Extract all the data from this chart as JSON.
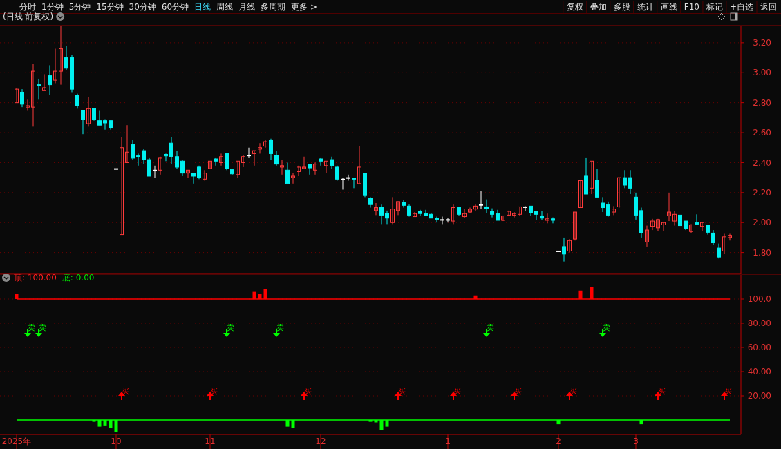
{
  "chart_data": [
    {
      "type": "candlestick",
      "title": "(日线 前复权)",
      "annotations": [
        "分时",
        "1分钟",
        "5分钟",
        "15分钟",
        "30分钟",
        "60分钟",
        "日线",
        "周线",
        "月线",
        "多周期",
        "更多 >",
        "复权",
        "叠加",
        "多股",
        "统计",
        "画线",
        "F10",
        "标记",
        "+自选",
        "返回"
      ],
      "categories": [
        null,
        null,
        null,
        null,
        null,
        null,
        null,
        null,
        null,
        null,
        null,
        null,
        null,
        null,
        null,
        null,
        null,
        null,
        null,
        null,
        null,
        null,
        null,
        null,
        null,
        null,
        null,
        null,
        null,
        null,
        null,
        null,
        null,
        null,
        null,
        null,
        null,
        null,
        null,
        null,
        null,
        null,
        null,
        null,
        null,
        null,
        null,
        null,
        null,
        null,
        null,
        null,
        null,
        null,
        null,
        null,
        null,
        null,
        null,
        null,
        null,
        null,
        null,
        null,
        null,
        null,
        null,
        null,
        null,
        null,
        null,
        null,
        null,
        null,
        null,
        null,
        null,
        null,
        null,
        null,
        null,
        null,
        null,
        null,
        null,
        null,
        null,
        null,
        null,
        null,
        null,
        null,
        null,
        null,
        null,
        null,
        null,
        null,
        null,
        null,
        null,
        null,
        null,
        null,
        null,
        null,
        null,
        null,
        null,
        null,
        null,
        null,
        null,
        null,
        null,
        null,
        null,
        null,
        null,
        null,
        null,
        null,
        null,
        null,
        null,
        null,
        null,
        null,
        null,
        null
      ],
      "ohlc": [
        [
          2.8,
          2.9,
          2.8,
          2.89
        ],
        [
          2.87,
          2.89,
          2.77,
          2.79
        ],
        [
          2.77,
          2.82,
          2.75,
          2.78
        ],
        [
          2.77,
          3.06,
          2.64,
          3.01
        ],
        [
          2.92,
          2.96,
          2.82,
          2.915
        ],
        [
          2.88,
          2.99,
          2.88,
          2.9
        ],
        [
          2.98,
          3.05,
          2.85,
          2.92
        ],
        [
          2.95,
          3.16,
          2.93,
          3.01
        ],
        [
          3.01,
          3.31,
          2.92,
          3.16
        ],
        [
          3.1,
          3.18,
          3.02,
          3.03
        ],
        [
          3.1,
          3.12,
          2.87,
          2.89
        ],
        [
          2.85,
          2.86,
          2.76,
          2.78
        ],
        [
          2.75,
          2.75,
          2.59,
          2.69
        ],
        [
          2.66,
          2.84,
          2.64,
          2.76
        ],
        [
          2.76,
          2.76,
          2.68,
          2.69
        ],
        [
          2.68,
          2.75,
          2.65,
          2.65
        ],
        [
          2.68,
          2.69,
          2.62,
          2.665
        ],
        [
          2.68,
          2.68,
          2.62,
          2.63
        ],
        [
          2.36,
          2.36,
          2.36,
          2.36
        ],
        [
          1.92,
          2.57,
          1.92,
          2.5
        ],
        [
          2.4,
          2.65,
          2.4,
          2.47
        ],
        [
          2.52,
          2.55,
          2.42,
          2.43
        ],
        [
          2.445,
          2.46,
          2.38,
          2.44
        ],
        [
          2.48,
          2.49,
          2.39,
          2.42
        ],
        [
          2.42,
          2.43,
          2.31,
          2.31
        ],
        [
          2.35,
          2.38,
          2.3,
          2.35
        ],
        [
          2.35,
          2.44,
          2.32,
          2.43
        ],
        [
          2.455,
          2.46,
          2.41,
          2.445
        ],
        [
          2.53,
          2.57,
          2.39,
          2.44
        ],
        [
          2.44,
          2.48,
          2.36,
          2.37
        ],
        [
          2.41,
          2.42,
          2.31,
          2.33
        ],
        [
          2.33,
          2.35,
          2.3,
          2.35
        ],
        [
          2.33,
          2.33,
          2.26,
          2.31
        ],
        [
          2.37,
          2.38,
          2.29,
          2.3
        ],
        [
          2.29,
          2.35,
          2.28,
          2.33
        ],
        [
          2.36,
          2.41,
          2.36,
          2.41
        ],
        [
          2.425,
          2.43,
          2.38,
          2.41
        ],
        [
          2.4,
          2.46,
          2.38,
          2.44
        ],
        [
          2.46,
          2.46,
          2.35,
          2.36
        ],
        [
          2.355,
          2.36,
          2.32,
          2.325
        ],
        [
          2.32,
          2.41,
          2.3,
          2.41
        ],
        [
          2.4,
          2.45,
          2.37,
          2.44
        ],
        [
          2.45,
          2.5,
          2.43,
          2.45
        ],
        [
          2.46,
          2.48,
          2.38,
          2.48
        ],
        [
          2.49,
          2.53,
          2.46,
          2.5
        ],
        [
          2.51,
          2.55,
          2.5,
          2.54
        ],
        [
          2.55,
          2.56,
          2.42,
          2.46
        ],
        [
          2.45,
          2.48,
          2.38,
          2.39
        ],
        [
          2.37,
          2.42,
          2.32,
          2.38
        ],
        [
          2.35,
          2.4,
          2.26,
          2.26
        ],
        [
          2.3,
          2.33,
          2.26,
          2.31
        ],
        [
          2.34,
          2.38,
          2.31,
          2.37
        ],
        [
          2.36,
          2.44,
          2.36,
          2.37
        ],
        [
          2.39,
          2.39,
          2.32,
          2.365
        ],
        [
          2.35,
          2.4,
          2.32,
          2.39
        ],
        [
          2.425,
          2.43,
          2.38,
          2.41
        ],
        [
          2.38,
          2.41,
          2.33,
          2.41
        ],
        [
          2.42,
          2.44,
          2.36,
          2.38
        ],
        [
          2.37,
          2.38,
          2.28,
          2.29
        ],
        [
          2.29,
          2.3,
          2.22,
          2.29
        ],
        [
          2.3,
          2.32,
          2.28,
          2.3
        ],
        [
          2.295,
          2.3,
          2.23,
          2.29
        ],
        [
          2.26,
          2.51,
          2.26,
          2.37
        ],
        [
          2.33,
          2.33,
          2.17,
          2.18
        ],
        [
          2.16,
          2.17,
          2.1,
          2.12
        ],
        [
          2.08,
          2.13,
          2.05,
          2.1
        ],
        [
          2.1,
          2.12,
          1.99,
          2.05
        ],
        [
          2.06,
          2.08,
          1.99,
          2.03
        ],
        [
          2.0,
          2.17,
          1.99,
          2.09
        ],
        [
          2.08,
          2.14,
          2.05,
          2.14
        ],
        [
          2.135,
          2.15,
          2.1,
          2.115
        ],
        [
          2.11,
          2.12,
          2.04,
          2.05
        ],
        [
          2.04,
          2.07,
          2.04,
          2.06
        ],
        [
          2.075,
          2.085,
          2.045,
          2.06
        ],
        [
          2.06,
          2.085,
          2.045,
          2.045
        ],
        [
          2.055,
          2.06,
          2.03,
          2.03
        ],
        [
          2.03,
          2.04,
          2.0,
          2.02
        ],
        [
          2.02,
          2.04,
          1.99,
          2.02
        ],
        [
          2.02,
          2.03,
          2.0,
          2.02
        ],
        [
          2.01,
          2.12,
          1.99,
          2.1
        ],
        [
          2.1,
          2.1,
          2.045,
          2.055
        ],
        [
          2.04,
          2.09,
          2.03,
          2.06
        ],
        [
          2.07,
          2.1,
          2.065,
          2.09
        ],
        [
          2.09,
          2.12,
          2.075,
          2.11
        ],
        [
          2.12,
          2.21,
          2.09,
          2.12
        ],
        [
          2.105,
          2.155,
          2.065,
          2.095
        ],
        [
          2.075,
          2.095,
          2.035,
          2.055
        ],
        [
          2.06,
          2.085,
          2.015,
          2.015
        ],
        [
          2.015,
          2.045,
          2.01,
          2.045
        ],
        [
          2.05,
          2.08,
          2.045,
          2.075
        ],
        [
          2.05,
          2.07,
          2.035,
          2.06
        ],
        [
          2.055,
          2.105,
          2.045,
          2.105
        ],
        [
          2.105,
          2.11,
          2.075,
          2.105
        ],
        [
          2.11,
          2.11,
          2.045,
          2.065
        ],
        [
          2.075,
          2.075,
          2.015,
          2.055
        ],
        [
          2.045,
          2.075,
          2.015,
          2.03
        ],
        [
          2.015,
          2.06,
          1.995,
          2.025
        ],
        [
          2.025,
          2.035,
          1.995,
          2.015
        ],
        [
          1.81,
          1.81,
          1.81,
          1.81
        ],
        [
          1.84,
          1.9,
          1.74,
          1.79
        ],
        [
          1.81,
          1.89,
          1.8,
          1.88
        ],
        [
          1.89,
          2.07,
          1.88,
          2.07
        ],
        [
          2.1,
          2.28,
          2.1,
          2.28
        ],
        [
          2.31,
          2.43,
          2.19,
          2.19
        ],
        [
          2.23,
          2.41,
          2.19,
          2.41
        ],
        [
          2.28,
          2.36,
          2.17,
          2.17
        ],
        [
          2.13,
          2.17,
          2.07,
          2.1
        ],
        [
          2.12,
          2.14,
          2.04,
          2.05
        ],
        [
          2.07,
          2.11,
          2.05,
          2.09
        ],
        [
          2.105,
          2.3,
          2.1,
          2.3
        ],
        [
          2.3,
          2.35,
          2.23,
          2.25
        ],
        [
          2.3,
          2.35,
          2.19,
          2.23
        ],
        [
          2.17,
          2.2,
          2.02,
          2.05
        ],
        [
          2.08,
          2.1,
          1.9,
          1.93
        ],
        [
          1.87,
          1.98,
          1.84,
          1.95
        ],
        [
          1.975,
          2.025,
          1.95,
          2.01
        ],
        [
          1.965,
          2.025,
          1.945,
          2.02
        ],
        [
          1.985,
          2.0,
          1.945,
          2.0
        ],
        [
          2.045,
          2.2,
          2.01,
          2.07
        ],
        [
          2.01,
          2.075,
          1.98,
          2.055
        ],
        [
          2.05,
          2.05,
          1.98,
          1.98
        ],
        [
          2.01,
          2.01,
          1.95,
          1.96
        ],
        [
          1.94,
          1.99,
          1.93,
          1.985
        ],
        [
          2.0,
          2.055,
          1.99,
          1.99
        ],
        [
          1.975,
          2.005,
          1.945,
          2.0
        ],
        [
          1.985,
          1.985,
          1.92,
          1.935
        ],
        [
          1.93,
          1.95,
          1.85,
          1.865
        ],
        [
          1.83,
          1.86,
          1.76,
          1.77
        ],
        [
          1.81,
          1.925,
          1.79,
          1.905
        ],
        [
          1.9,
          1.925,
          1.88,
          1.915
        ]
      ],
      "ylim": [
        1.66,
        3.31
      ],
      "yticks": [
        {
          "value": 1.8,
          "label": "1.80"
        },
        {
          "value": 2.0,
          "label": "2.00"
        },
        {
          "value": 2.2,
          "label": "2.20"
        },
        {
          "value": 2.4,
          "label": "2.40"
        },
        {
          "value": 2.6,
          "label": "2.60"
        },
        {
          "value": 2.8,
          "label": "2.80"
        },
        {
          "value": 3.0,
          "label": "3.00"
        },
        {
          "value": 3.2,
          "label": "3.20"
        }
      ],
      "grid": "y",
      "tick_labels": "y"
    },
    {
      "type": "bar",
      "annotations": [
        "顶: 100.00",
        "底: 0.00"
      ],
      "categories": [
        "2025年",
        null,
        null,
        null,
        null,
        null,
        null,
        null,
        null,
        null,
        null,
        null,
        null,
        null,
        null,
        null,
        null,
        null,
        "10",
        null,
        null,
        null,
        null,
        null,
        null,
        null,
        null,
        null,
        null,
        null,
        null,
        null,
        null,
        null,
        null,
        "11",
        null,
        null,
        null,
        null,
        null,
        null,
        null,
        null,
        null,
        null,
        null,
        null,
        null,
        null,
        null,
        null,
        null,
        null,
        null,
        "12",
        null,
        null,
        null,
        null,
        null,
        null,
        null,
        null,
        null,
        null,
        null,
        null,
        null,
        null,
        null,
        null,
        null,
        null,
        null,
        null,
        null,
        null,
        "1",
        null,
        null,
        null,
        null,
        null,
        null,
        null,
        null,
        null,
        null,
        null,
        null,
        null,
        null,
        null,
        null,
        null,
        null,
        null,
        "2",
        null,
        null,
        null,
        null,
        null,
        null,
        null,
        null,
        null,
        null,
        null,
        null,
        null,
        "3",
        null,
        null,
        null,
        null,
        null,
        null,
        null,
        null,
        null,
        null,
        null,
        null,
        null,
        null,
        null,
        null,
        null
      ],
      "series": [
        {
          "type": "line",
          "color": "#ff0000",
          "values": [
            100,
            100,
            100,
            100,
            100,
            100,
            100,
            100,
            100,
            100,
            100,
            100,
            100,
            100,
            100,
            100,
            100,
            100,
            100,
            100,
            100,
            100,
            100,
            100,
            100,
            100,
            100,
            100,
            100,
            100,
            100,
            100,
            100,
            100,
            100,
            100,
            100,
            100,
            100,
            100,
            100,
            100,
            100,
            100,
            100,
            100,
            100,
            100,
            100,
            100,
            100,
            100,
            100,
            100,
            100,
            100,
            100,
            100,
            100,
            100,
            100,
            100,
            100,
            100,
            100,
            100,
            100,
            100,
            100,
            100,
            100,
            100,
            100,
            100,
            100,
            100,
            100,
            100,
            100,
            100,
            100,
            100,
            100,
            100,
            100,
            100,
            100,
            100,
            100,
            100,
            100,
            100,
            100,
            100,
            100,
            100,
            100,
            100,
            100,
            100,
            100,
            100,
            100,
            100,
            100,
            100,
            100,
            100,
            100,
            100,
            100,
            100,
            100,
            100,
            100,
            100,
            100,
            100,
            100,
            100,
            100,
            100,
            100,
            100,
            100,
            100,
            100,
            100,
            100,
            100
          ]
        },
        {
          "type": "line",
          "color": "#00ff00",
          "values": [
            0,
            0,
            0,
            0,
            0,
            0,
            0,
            0,
            0,
            0,
            0,
            0,
            0,
            0,
            0,
            0,
            0,
            0,
            0,
            0,
            0,
            0,
            0,
            0,
            0,
            0,
            0,
            0,
            0,
            0,
            0,
            0,
            0,
            0,
            0,
            0,
            0,
            0,
            0,
            0,
            0,
            0,
            0,
            0,
            0,
            0,
            0,
            0,
            0,
            0,
            0,
            0,
            0,
            0,
            0,
            0,
            0,
            0,
            0,
            0,
            0,
            0,
            0,
            0,
            0,
            0,
            0,
            0,
            0,
            0,
            0,
            0,
            0,
            0,
            0,
            0,
            0,
            0,
            0,
            0,
            0,
            0,
            0,
            0,
            0,
            0,
            0,
            0,
            0,
            0,
            0,
            0,
            0,
            0,
            0,
            0,
            0,
            0,
            0,
            0,
            0,
            0,
            0,
            0,
            0,
            0,
            0,
            0,
            0,
            0,
            0,
            0,
            0,
            0,
            0,
            0,
            0,
            0,
            0,
            0,
            0,
            0,
            0,
            0,
            0,
            0,
            0,
            0,
            0,
            0
          ]
        },
        {
          "type": "bar",
          "color": "#ff0000",
          "base": [
            100,
            null,
            null,
            null,
            null,
            null,
            null,
            null,
            null,
            null,
            null,
            null,
            null,
            null,
            null,
            null,
            null,
            null,
            null,
            null,
            null,
            null,
            null,
            null,
            null,
            null,
            null,
            null,
            null,
            null,
            null,
            null,
            null,
            null,
            null,
            null,
            null,
            null,
            null,
            null,
            null,
            null,
            null,
            100,
            100,
            100,
            null,
            null,
            null,
            null,
            null,
            null,
            null,
            null,
            null,
            null,
            null,
            null,
            null,
            null,
            null,
            null,
            null,
            null,
            null,
            null,
            null,
            null,
            null,
            null,
            null,
            null,
            null,
            null,
            null,
            null,
            null,
            null,
            null,
            null,
            null,
            null,
            null,
            100,
            null,
            null,
            null,
            null,
            null,
            null,
            null,
            null,
            null,
            null,
            null,
            null,
            null,
            null,
            null,
            null,
            null,
            null,
            100,
            null,
            100,
            null,
            null,
            null,
            null,
            null,
            null,
            null,
            null,
            null,
            null,
            null,
            null,
            null,
            null,
            null,
            null,
            null,
            null,
            null,
            null,
            null,
            null,
            null,
            null,
            null
          ],
          "values": [
            4,
            null,
            null,
            null,
            null,
            null,
            null,
            null,
            null,
            null,
            null,
            null,
            null,
            null,
            null,
            null,
            null,
            null,
            null,
            null,
            null,
            null,
            null,
            null,
            null,
            null,
            null,
            null,
            null,
            null,
            null,
            null,
            null,
            null,
            null,
            null,
            null,
            null,
            null,
            null,
            null,
            null,
            null,
            6.5,
            4,
            8,
            null,
            null,
            null,
            null,
            null,
            null,
            null,
            null,
            null,
            null,
            null,
            null,
            null,
            null,
            null,
            null,
            null,
            null,
            null,
            null,
            null,
            null,
            null,
            null,
            null,
            null,
            null,
            null,
            null,
            null,
            null,
            null,
            null,
            null,
            null,
            null,
            null,
            3,
            null,
            null,
            null,
            null,
            null,
            null,
            null,
            null,
            null,
            null,
            null,
            null,
            null,
            null,
            null,
            null,
            null,
            null,
            7,
            null,
            10,
            null,
            null,
            null,
            null,
            null,
            null,
            null,
            null,
            null,
            null,
            null,
            null,
            null,
            null,
            null,
            null,
            null,
            null,
            null,
            null,
            null,
            null,
            null,
            null,
            null
          ]
        },
        {
          "type": "bar",
          "color": "#00ff00",
          "values": [
            null,
            null,
            null,
            null,
            null,
            null,
            null,
            null,
            null,
            null,
            null,
            null,
            null,
            null,
            -1.5,
            -5.5,
            -4.5,
            -6.5,
            -10,
            null,
            null,
            null,
            null,
            null,
            null,
            null,
            null,
            null,
            null,
            null,
            null,
            null,
            null,
            null,
            null,
            null,
            null,
            null,
            null,
            null,
            null,
            null,
            null,
            null,
            null,
            null,
            null,
            null,
            null,
            -5.5,
            -6.5,
            null,
            null,
            null,
            null,
            null,
            null,
            null,
            null,
            null,
            null,
            null,
            null,
            null,
            -1.5,
            -2,
            -8.5,
            -5.5,
            null,
            null,
            null,
            null,
            null,
            null,
            null,
            null,
            null,
            null,
            null,
            null,
            null,
            null,
            null,
            null,
            null,
            null,
            null,
            null,
            null,
            null,
            null,
            null,
            null,
            null,
            null,
            null,
            null,
            null,
            -3.5,
            null,
            null,
            null,
            null,
            null,
            null,
            null,
            null,
            null,
            null,
            null,
            null,
            null,
            null,
            -3.5,
            null,
            null,
            null,
            null,
            null,
            null,
            null,
            null,
            null,
            null,
            null,
            null,
            null,
            null,
            null,
            null
          ]
        },
        {
          "type": "scatter",
          "name": "卖",
          "color": "#00ff00",
          "values": [
            null,
            null,
            72,
            null,
            72,
            null,
            null,
            null,
            null,
            null,
            null,
            null,
            null,
            null,
            null,
            null,
            null,
            null,
            null,
            null,
            null,
            null,
            null,
            null,
            null,
            null,
            null,
            null,
            null,
            null,
            null,
            null,
            null,
            null,
            null,
            null,
            null,
            null,
            72,
            null,
            null,
            null,
            null,
            null,
            null,
            null,
            null,
            72,
            null,
            null,
            null,
            null,
            null,
            null,
            null,
            null,
            null,
            null,
            null,
            null,
            null,
            null,
            null,
            null,
            null,
            null,
            null,
            null,
            null,
            null,
            null,
            null,
            null,
            null,
            null,
            null,
            null,
            null,
            null,
            null,
            null,
            null,
            null,
            null,
            null,
            72,
            null,
            null,
            null,
            null,
            null,
            null,
            null,
            null,
            null,
            null,
            null,
            null,
            null,
            null,
            null,
            null,
            null,
            null,
            null,
            null,
            72,
            null,
            null,
            null,
            null,
            null,
            null,
            null,
            null,
            null,
            null,
            null,
            null,
            null,
            null,
            null,
            null,
            null,
            null,
            null,
            null,
            null,
            null,
            null
          ]
        },
        {
          "type": "scatter",
          "name": "买",
          "color": "#ff0000",
          "values": [
            null,
            null,
            null,
            null,
            null,
            null,
            null,
            null,
            null,
            null,
            null,
            null,
            null,
            null,
            null,
            null,
            null,
            null,
            null,
            20,
            null,
            null,
            null,
            null,
            null,
            null,
            null,
            null,
            null,
            null,
            null,
            null,
            null,
            null,
            null,
            20,
            null,
            null,
            null,
            null,
            null,
            null,
            null,
            null,
            null,
            null,
            null,
            null,
            null,
            null,
            null,
            null,
            20,
            null,
            null,
            null,
            null,
            null,
            null,
            null,
            null,
            null,
            null,
            null,
            null,
            null,
            null,
            null,
            null,
            20,
            null,
            null,
            null,
            null,
            null,
            null,
            null,
            null,
            null,
            20,
            null,
            null,
            null,
            null,
            null,
            null,
            null,
            null,
            null,
            null,
            20,
            null,
            null,
            null,
            null,
            null,
            null,
            null,
            null,
            null,
            20,
            null,
            null,
            null,
            null,
            null,
            null,
            null,
            null,
            null,
            null,
            null,
            null,
            null,
            null,
            null,
            20,
            null,
            null,
            null,
            null,
            null,
            null,
            null,
            null,
            null,
            null,
            null,
            20,
            null
          ]
        }
      ],
      "ylim": [
        -12,
        120
      ],
      "yticks": [
        {
          "value": 20,
          "label": "20.00"
        },
        {
          "value": 40,
          "label": "40.00"
        },
        {
          "value": 60,
          "label": "60.00"
        },
        {
          "value": 80,
          "label": "80.00"
        },
        {
          "value": 100,
          "label": "100.0"
        }
      ],
      "grid": "y"
    }
  ]
}
